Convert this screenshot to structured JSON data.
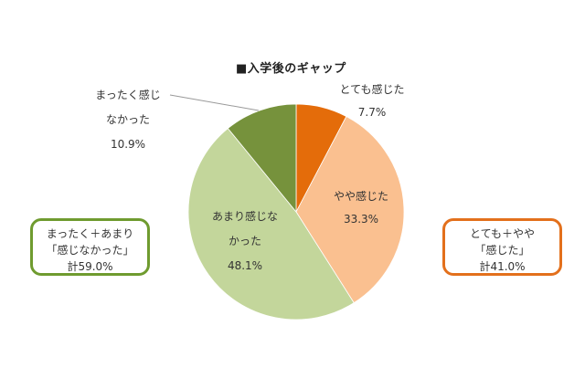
{
  "chart_data": {
    "type": "pie",
    "title": "■入学後のギャップ",
    "slices": [
      {
        "label": "とても感じた",
        "value": 7.7,
        "display": "7.7%",
        "color": "#e46c0a"
      },
      {
        "label": "やや感じた",
        "value": 33.3,
        "display": "33.3%",
        "color": "#fac090"
      },
      {
        "label": "あまり感じなかった",
        "value": 48.1,
        "display": "48.1%",
        "color": "#c3d69b"
      },
      {
        "label": "まったく感じなかった",
        "value": 10.9,
        "display": "10.9%",
        "color": "#76923c"
      }
    ],
    "start_angle": "12 o'clock, clockwise",
    "annotations": [
      {
        "text": "まったく＋あまり「感じなかった」計59.0%",
        "border_color": "#6f9b2f"
      },
      {
        "text": "とても＋やや「感じた」計41.0%",
        "border_color": "#e3701c"
      }
    ]
  },
  "title": "■入学後のギャップ",
  "labels": {
    "totemo_line1": "とても感じた",
    "totemo_pct": "7.7%",
    "yaya_line1": "やや感じた",
    "yaya_pct": "33.3%",
    "amari_line1": "あまり感じな",
    "amari_line2": "かった",
    "amari_pct": "48.1%",
    "mattaku_line1": "まったく感じ",
    "mattaku_line2": "なかった",
    "mattaku_pct": "10.9%"
  },
  "boxes": {
    "negative": {
      "line1": "まったく＋あまり",
      "line2": "「感じなかった」",
      "line3": "計59.0%"
    },
    "positive": {
      "line1": "とても＋やや",
      "line2": "「感じた」",
      "line3": "計41.0%"
    }
  }
}
